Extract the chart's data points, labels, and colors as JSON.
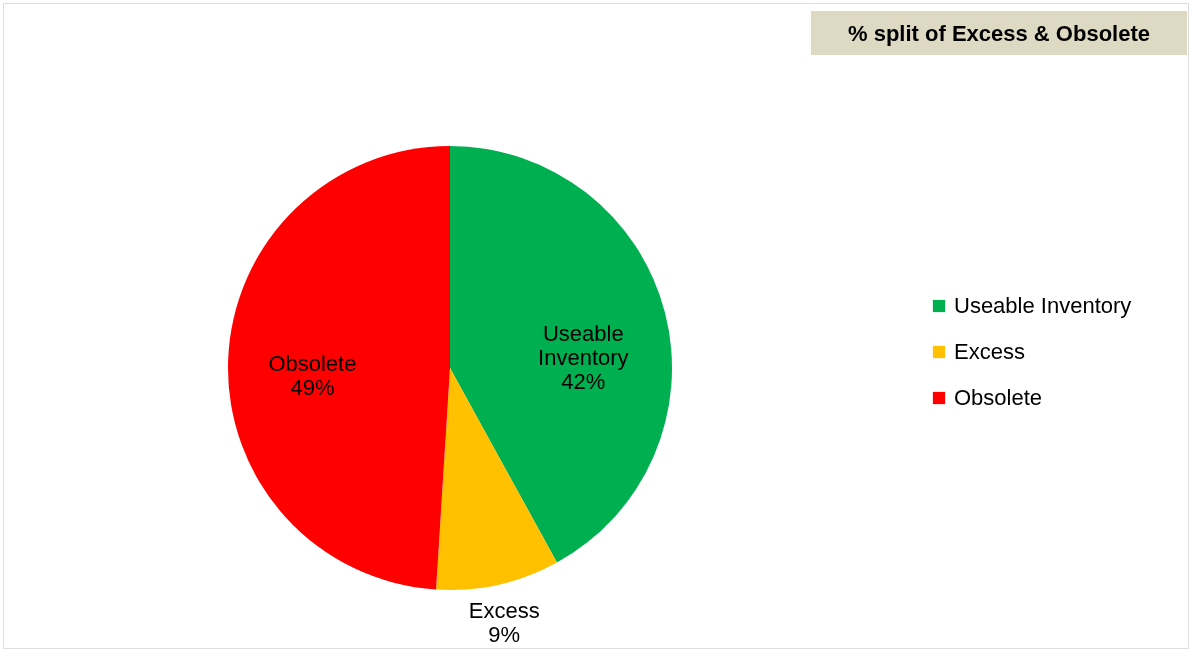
{
  "chart_data": {
    "type": "pie",
    "title": "% split of Excess & Obsolete",
    "categories": [
      "Useable Inventory",
      "Excess",
      "Obsolete"
    ],
    "values": [
      42,
      9,
      49
    ],
    "colors": [
      "#00b050",
      "#ffc000",
      "#ff0000"
    ],
    "value_labels": [
      "42%",
      "9%",
      "49%"
    ],
    "legend": "right"
  }
}
